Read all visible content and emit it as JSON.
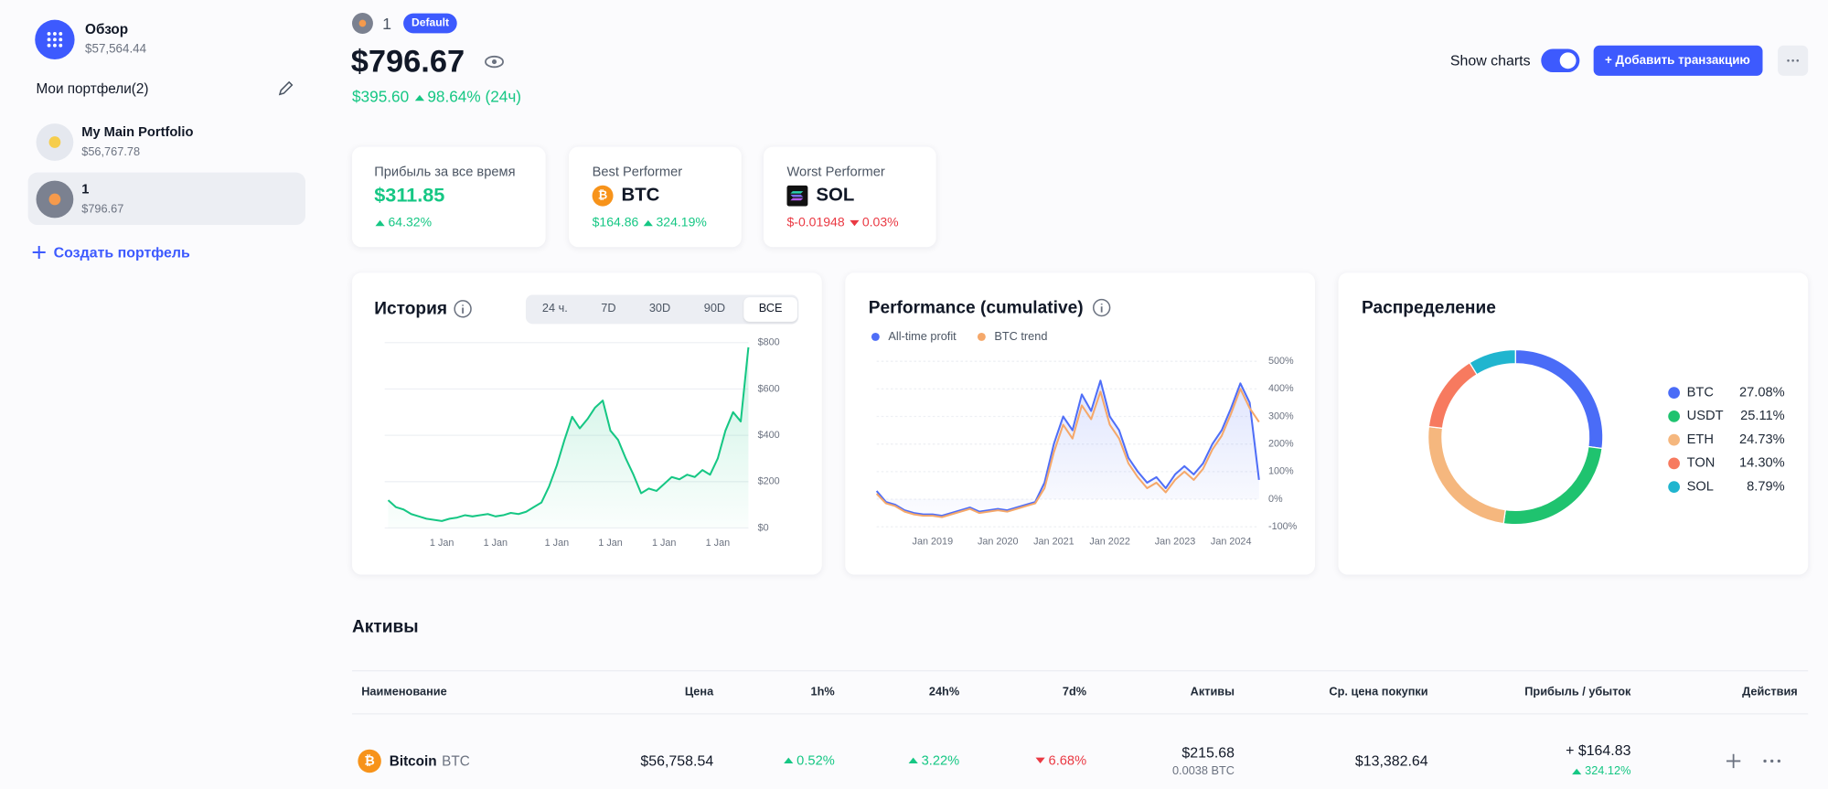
{
  "sidebar": {
    "overview": {
      "title": "Обзор",
      "value": "$57,564.44"
    },
    "portfolios_title": "Мои портфели(2)",
    "portfolios": [
      {
        "name": "My Main Portfolio",
        "value": "$56,767.78"
      },
      {
        "name": "1",
        "value": "$796.67"
      }
    ],
    "create": "Создать портфель"
  },
  "header": {
    "name": "1",
    "badge": "Default",
    "total": "$796.67",
    "change": "$395.60",
    "change_pct": "98.64% (24ч)",
    "show_charts": "Show charts",
    "add_button": "+ Добавить транзакцию"
  },
  "stats": [
    {
      "label": "Прибыль за все время",
      "value": "$311.85",
      "change": "64.32%"
    },
    {
      "label": "Best Performer",
      "coin": "BTC",
      "value": "$164.86",
      "change": "324.19%"
    },
    {
      "label": "Worst Performer",
      "coin": "SOL",
      "value": "$-0.01948",
      "change": "0.03%"
    }
  ],
  "chart_data": [
    {
      "type": "line",
      "title": "История",
      "tabs": [
        "24 ч.",
        "7D",
        "30D",
        "90D",
        "ВСЕ"
      ],
      "active_tab": 4,
      "categories": [
        null,
        null,
        null,
        null,
        null,
        null,
        null,
        "1 Jan",
        null,
        null,
        null,
        null,
        null,
        null,
        "1 Jan",
        null,
        null,
        null,
        null,
        null,
        null,
        null,
        "1 Jan",
        null,
        null,
        null,
        null,
        null,
        null,
        "1 Jan",
        null,
        null,
        null,
        null,
        null,
        null,
        "1 Jan",
        null,
        null,
        null,
        null,
        null,
        null,
        "1 Jan",
        null,
        null,
        null,
        null
      ],
      "values": [
        120,
        90,
        80,
        60,
        50,
        40,
        35,
        30,
        40,
        45,
        55,
        50,
        55,
        60,
        50,
        55,
        65,
        60,
        70,
        90,
        110,
        180,
        270,
        380,
        480,
        430,
        470,
        520,
        550,
        420,
        380,
        300,
        230,
        150,
        170,
        160,
        190,
        220,
        210,
        230,
        220,
        250,
        230,
        300,
        420,
        500,
        460,
        780
      ],
      "color": "#16c784",
      "ylim": [
        0,
        800
      ],
      "yticks": [
        {
          "value": 0,
          "label": "$0"
        },
        {
          "value": 200,
          "label": "$200"
        },
        {
          "value": 400,
          "label": "$400"
        },
        {
          "value": 600,
          "label": "$600"
        },
        {
          "value": 800,
          "label": "$800"
        }
      ],
      "grid": true
    },
    {
      "type": "line",
      "title": "Performance (cumulative)",
      "categories": [
        null,
        null,
        null,
        null,
        null,
        null,
        "Jan 2019",
        null,
        null,
        null,
        null,
        null,
        null,
        "Jan 2020",
        null,
        null,
        null,
        null,
        null,
        "Jan 2021",
        null,
        null,
        null,
        null,
        null,
        "Jan 2022",
        null,
        null,
        null,
        null,
        null,
        null,
        "Jan 2023",
        null,
        null,
        null,
        null,
        null,
        "Jan 2024",
        null,
        null,
        null
      ],
      "series": [
        {
          "name": "All-time profit",
          "color": "#4f6ef7",
          "values": [
            30,
            -10,
            -20,
            -40,
            -50,
            -55,
            -55,
            -60,
            -50,
            -40,
            -30,
            -45,
            -40,
            -35,
            -40,
            -30,
            -20,
            -10,
            60,
            200,
            300,
            250,
            380,
            320,
            430,
            300,
            250,
            150,
            100,
            60,
            80,
            40,
            90,
            120,
            90,
            130,
            200,
            250,
            330,
            420,
            350,
            70
          ]
        },
        {
          "name": "BTC trend",
          "color": "#f5a86a",
          "values": [
            20,
            -15,
            -25,
            -45,
            -55,
            -60,
            -60,
            -65,
            -55,
            -45,
            -35,
            -50,
            -45,
            -40,
            -45,
            -35,
            -25,
            -15,
            40,
            170,
            270,
            220,
            340,
            290,
            390,
            270,
            220,
            130,
            80,
            40,
            60,
            25,
            70,
            100,
            70,
            110,
            180,
            230,
            310,
            400,
            330,
            280
          ]
        }
      ],
      "ylim": [
        -100,
        500
      ],
      "yticks": [
        {
          "value": -100,
          "label": "-100%"
        },
        {
          "value": 0,
          "label": "0%"
        },
        {
          "value": 100,
          "label": "100%"
        },
        {
          "value": 200,
          "label": "200%"
        },
        {
          "value": 300,
          "label": "300%"
        },
        {
          "value": 400,
          "label": "400%"
        },
        {
          "value": 500,
          "label": "500%"
        }
      ],
      "grid": true
    },
    {
      "type": "pie",
      "title": "Распределение",
      "categories": [
        "BTC",
        "USDT",
        "ETH",
        "TON",
        "SOL"
      ],
      "values": [
        27.08,
        25.11,
        24.73,
        14.3,
        8.79
      ],
      "value_labels": [
        "27.08%",
        "25.11%",
        "24.73%",
        "14.30%",
        "8.79%"
      ],
      "colors": [
        "#4a6cf7",
        "#1fc36f",
        "#f5b77e",
        "#f77a5f",
        "#20b5cf"
      ],
      "donut": true
    }
  ],
  "assets": {
    "title": "Активы",
    "columns": [
      "Наименование",
      "Цена",
      "1h%",
      "24h%",
      "7d%",
      "Активы",
      "Ср. цена покупки",
      "Прибыль / убыток",
      "Действия"
    ],
    "rows": [
      {
        "name": "Bitcoin",
        "symbol": "BTC",
        "price": "$56,758.54",
        "h1": "0.52%",
        "h24": "3.22%",
        "d7": "6.68%",
        "holdings": "$215.68",
        "amount": "0.0038 BTC",
        "avg_price": "$13,382.64",
        "profit": "+ $164.83",
        "profit_pct": "324.12%"
      }
    ]
  }
}
